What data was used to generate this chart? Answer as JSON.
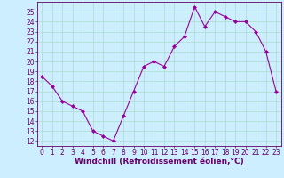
{
  "x": [
    0,
    1,
    2,
    3,
    4,
    5,
    6,
    7,
    8,
    9,
    10,
    11,
    12,
    13,
    14,
    15,
    16,
    17,
    18,
    19,
    20,
    21,
    22,
    23
  ],
  "y": [
    18.5,
    17.5,
    16.0,
    15.5,
    15.0,
    13.0,
    12.5,
    12.0,
    14.5,
    17.0,
    19.5,
    20.0,
    19.5,
    21.5,
    22.5,
    25.5,
    23.5,
    25.0,
    24.5,
    24.0,
    24.0,
    23.0,
    21.0,
    17.0
  ],
  "line_color": "#990099",
  "marker": "D",
  "marker_size": 2,
  "bg_color": "#cceeff",
  "grid_color": "#aaddcc",
  "xlabel": "Windchill (Refroidissement éolien,°C)",
  "xlabel_color": "#660066",
  "ylim": [
    11.5,
    26.0
  ],
  "xlim": [
    -0.5,
    23.5
  ],
  "yticks": [
    12,
    13,
    14,
    15,
    16,
    17,
    18,
    19,
    20,
    21,
    22,
    23,
    24,
    25
  ],
  "xticks": [
    0,
    1,
    2,
    3,
    4,
    5,
    6,
    7,
    8,
    9,
    10,
    11,
    12,
    13,
    14,
    15,
    16,
    17,
    18,
    19,
    20,
    21,
    22,
    23
  ],
  "tick_label_color": "#660066",
  "spine_color": "#660066",
  "tick_fontsize": 5.5,
  "xlabel_fontsize": 6.5
}
